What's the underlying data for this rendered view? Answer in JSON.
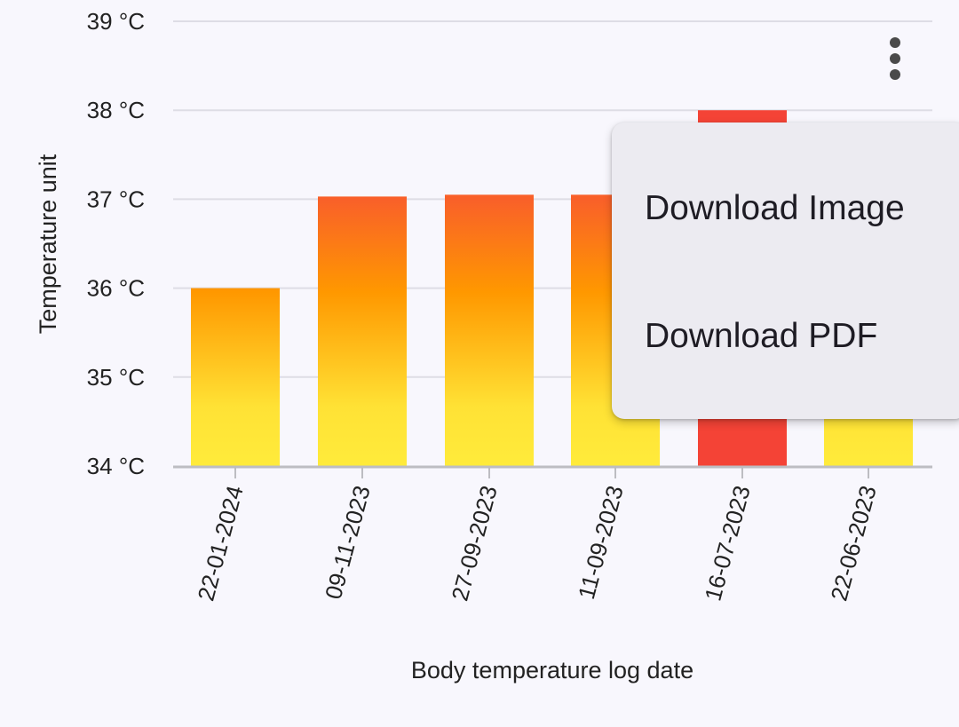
{
  "chart_data": {
    "type": "bar",
    "categories": [
      "22-01-2024",
      "09-11-2023",
      "27-09-2023",
      "11-09-2023",
      "16-07-2023",
      "22-06-2023"
    ],
    "values": [
      36.0,
      37.03,
      37.05,
      37.05,
      38.0,
      37.0
    ],
    "highlight_index": 4,
    "xlabel": "Body temperature log date",
    "ylabel": "Temperature unit",
    "ylim": [
      34,
      39
    ],
    "yticks": [
      34,
      35,
      36,
      37,
      38,
      39
    ],
    "ytick_labels": [
      "34 °C",
      "35 °C",
      "36 °C",
      "37 °C",
      "38 °C",
      "39 °C"
    ],
    "grid": true,
    "colors": {
      "gradient_bottom": "#ffeb3b",
      "gradient_middle": "#ff9800",
      "gradient_top": "#f96029",
      "highlight": "#f44336",
      "grid": "#dedde5",
      "axis": "#bdbdc2"
    }
  },
  "menu": {
    "items": [
      {
        "label": "Download Image"
      },
      {
        "label": "Download PDF"
      }
    ]
  },
  "icons": {
    "more": "more-vertical-icon"
  }
}
